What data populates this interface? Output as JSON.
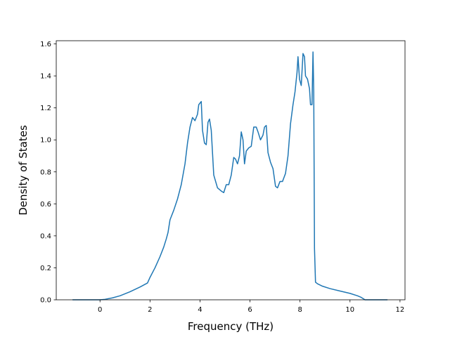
{
  "chart_data": {
    "type": "line",
    "title": "",
    "xlabel": "Frequency (THz)",
    "ylabel": "Density of States",
    "xlim": [
      -1.75,
      12.2
    ],
    "ylim": [
      0.0,
      1.62
    ],
    "xticks": [
      0,
      2,
      4,
      6,
      8,
      10,
      12
    ],
    "xtick_labels": [
      "0",
      "2",
      "4",
      "6",
      "8",
      "10",
      "12"
    ],
    "yticks": [
      0.0,
      0.2,
      0.4,
      0.6,
      0.8,
      1.0,
      1.2,
      1.4,
      1.6
    ],
    "ytick_labels": [
      "0.0",
      "0.2",
      "0.4",
      "0.6",
      "0.8",
      "1.0",
      "1.2",
      "1.4",
      "1.6"
    ],
    "grid": false,
    "legend": "none",
    "series_color": "#1f77b4",
    "series": [
      {
        "x": [
          -1.1,
          -0.5,
          0.0,
          0.2,
          0.5,
          0.8,
          1.2,
          1.6,
          1.9,
          2.0,
          2.2,
          2.4,
          2.55,
          2.65,
          2.72,
          2.8,
          2.95,
          3.1,
          3.25,
          3.4,
          3.5,
          3.6,
          3.7,
          3.8,
          3.9,
          3.95,
          4.05,
          4.1,
          4.18,
          4.25,
          4.32,
          4.38,
          4.45,
          4.55,
          4.7,
          4.85,
          4.95,
          5.05,
          5.15,
          5.25,
          5.35,
          5.42,
          5.5,
          5.58,
          5.65,
          5.72,
          5.78,
          5.85,
          5.95,
          6.05,
          6.15,
          6.25,
          6.32,
          6.42,
          6.52,
          6.58,
          6.65,
          6.72,
          6.82,
          6.92,
          7.02,
          7.1,
          7.2,
          7.3,
          7.42,
          7.52,
          7.62,
          7.72,
          7.8,
          7.88,
          7.92,
          7.98,
          8.05,
          8.12,
          8.18,
          8.22,
          8.3,
          8.38,
          8.42,
          8.48,
          8.52,
          8.55,
          8.58,
          8.62,
          8.7,
          8.9,
          9.2,
          9.6,
          10.0,
          10.3,
          10.45,
          10.6,
          11.0,
          11.5
        ],
        "y": [
          0.0,
          0.0,
          0.0,
          0.003,
          0.012,
          0.025,
          0.05,
          0.08,
          0.105,
          0.14,
          0.2,
          0.27,
          0.33,
          0.38,
          0.42,
          0.5,
          0.56,
          0.63,
          0.72,
          0.85,
          0.98,
          1.08,
          1.14,
          1.12,
          1.16,
          1.22,
          1.24,
          1.06,
          0.98,
          0.97,
          1.11,
          1.13,
          1.06,
          0.78,
          0.7,
          0.68,
          0.67,
          0.72,
          0.72,
          0.78,
          0.89,
          0.88,
          0.85,
          0.9,
          1.05,
          1.0,
          0.85,
          0.93,
          0.95,
          0.96,
          1.08,
          1.08,
          1.05,
          1.0,
          1.03,
          1.08,
          1.09,
          0.92,
          0.86,
          0.82,
          0.71,
          0.7,
          0.74,
          0.74,
          0.79,
          0.9,
          1.1,
          1.22,
          1.3,
          1.42,
          1.52,
          1.38,
          1.34,
          1.54,
          1.52,
          1.4,
          1.38,
          1.32,
          1.22,
          1.22,
          1.55,
          1.3,
          0.32,
          0.11,
          0.1,
          0.085,
          0.07,
          0.055,
          0.04,
          0.025,
          0.015,
          0.0,
          0.0,
          0.0
        ]
      }
    ]
  }
}
